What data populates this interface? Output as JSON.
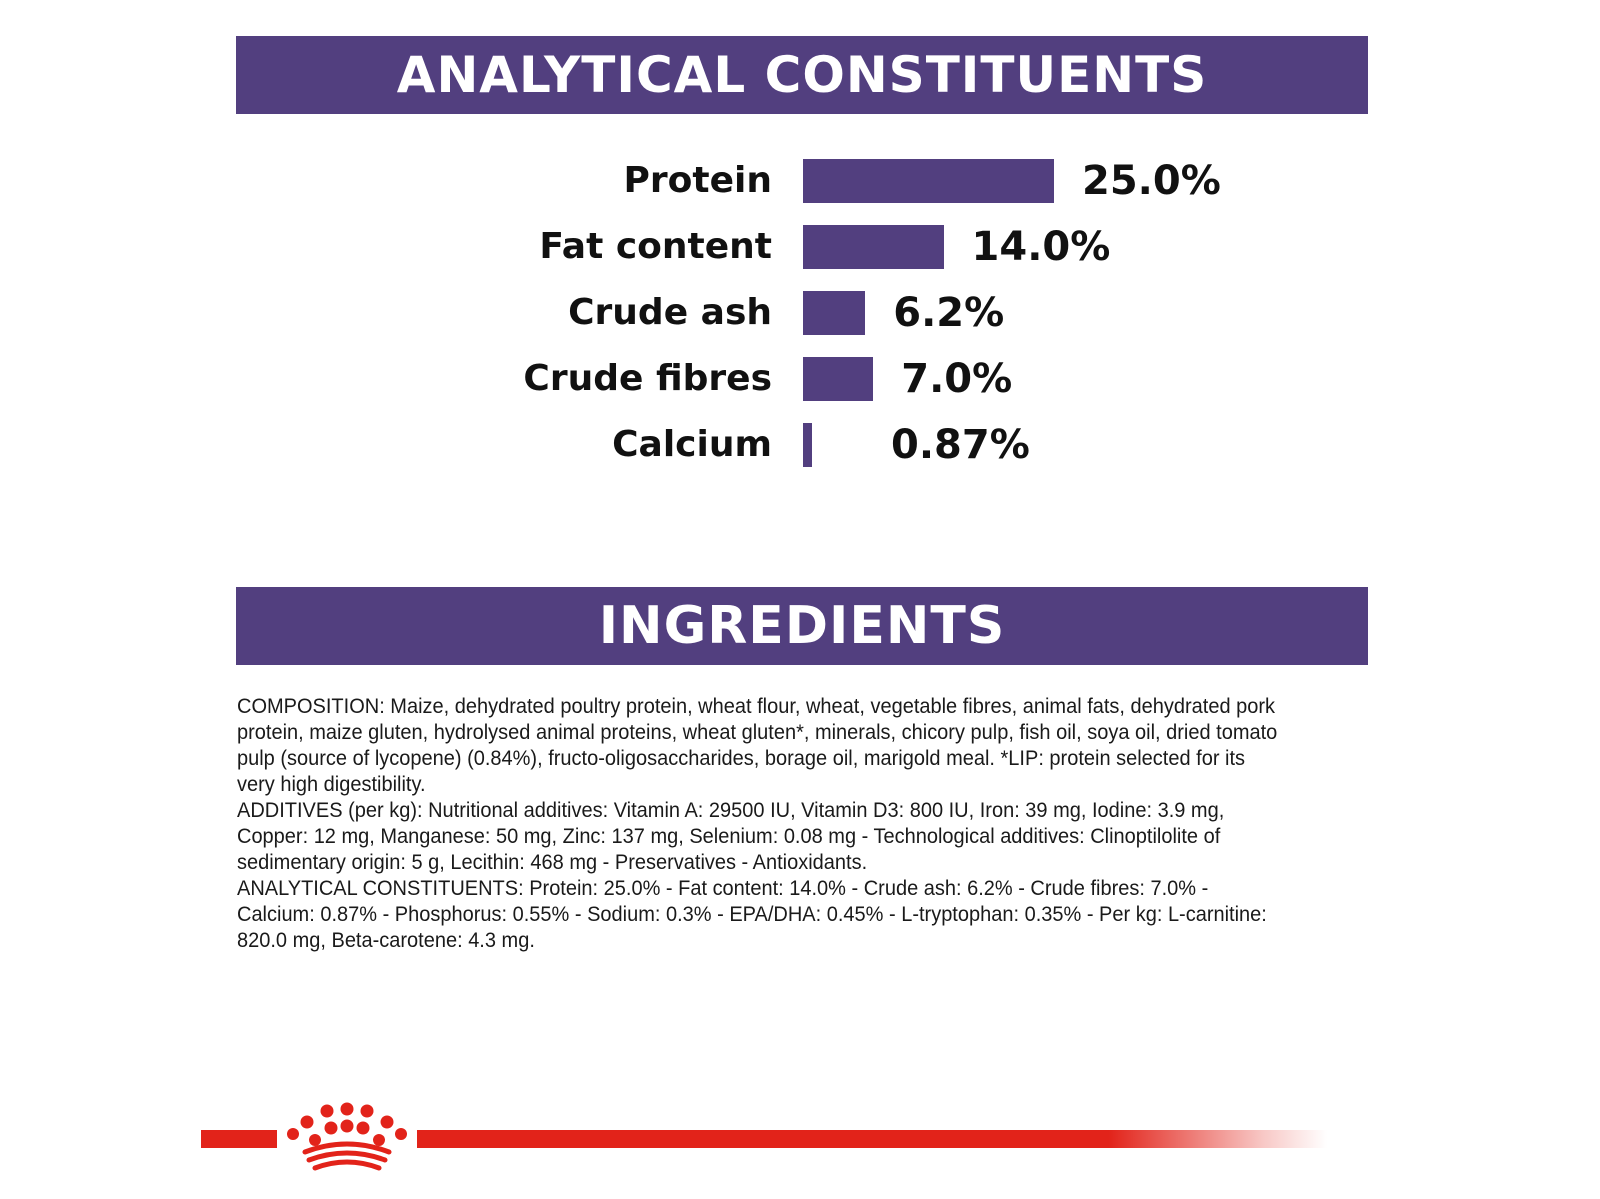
{
  "analytical_constituents": {
    "heading": "ANALYTICAL CONSTITUENTS",
    "rows": [
      {
        "label": "Protein",
        "value_text": "25.0%",
        "value": 25.0
      },
      {
        "label": "Fat content",
        "value_text": "14.0%",
        "value": 14.0
      },
      {
        "label": "Crude ash",
        "value_text": "6.2%",
        "value": 6.2
      },
      {
        "label": "Crude fibres",
        "value_text": "7.0%",
        "value": 7.0
      },
      {
        "label": "Calcium",
        "value_text": "0.87%",
        "value": 0.87
      }
    ]
  },
  "chart_data": {
    "type": "bar",
    "orientation": "horizontal",
    "categories": [
      "Protein",
      "Fat content",
      "Crude ash",
      "Crude fibres",
      "Calcium"
    ],
    "values": [
      25.0,
      14.0,
      6.2,
      7.0,
      0.87
    ],
    "data_labels": [
      "25.0%",
      "14.0%",
      "6.2%",
      "7.0%",
      "0.87%"
    ],
    "title": "ANALYTICAL CONSTITUENTS",
    "xlabel": "",
    "ylabel": "",
    "xlim": [
      0,
      25.0
    ],
    "grid": false,
    "legend": "none",
    "bar_color": "#523f7f"
  },
  "ingredients": {
    "heading": "INGREDIENTS",
    "paragraphs": [
      "COMPOSITION: Maize, dehydrated poultry protein, wheat flour, wheat, vegetable fibres, animal fats, dehydrated pork protein, maize gluten, hydrolysed animal proteins, wheat gluten*, minerals, chicory pulp, fish oil, soya oil, dried tomato pulp (source of lycopene) (0.84%), fructo-oligosaccharides, borage oil, marigold meal. *LIP: protein selected for its very high digestibility.",
      "ADDITIVES (per kg): Nutritional additives: Vitamin A: 29500 IU, Vitamin D3: 800 IU, Iron: 39 mg, Iodine: 3.9 mg, Copper: 12 mg, Manganese: 50 mg, Zinc: 137 mg, Selenium: 0.08 mg - Technological additives: Clinoptilolite of sedimentary origin: 5 g, Lecithin: 468 mg - Preservatives - Antioxidants.",
      "ANALYTICAL CONSTITUENTS: Protein: 25.0% - Fat content: 14.0% - Crude ash: 6.2% - Crude fibres: 7.0% - Calcium: 0.87% - Phosphorus: 0.55% - Sodium: 0.3% - EPA/DHA: 0.45% - L-tryptophan: 0.35% - Per kg: L-carnitine: 820.0 mg, Beta-carotene: 4.3 mg."
    ]
  },
  "colors": {
    "banner": "#523f7f",
    "bar": "#523f7f",
    "brand_red": "#e2231a"
  },
  "footer": {
    "logo_icon": "crown-logo-icon"
  }
}
